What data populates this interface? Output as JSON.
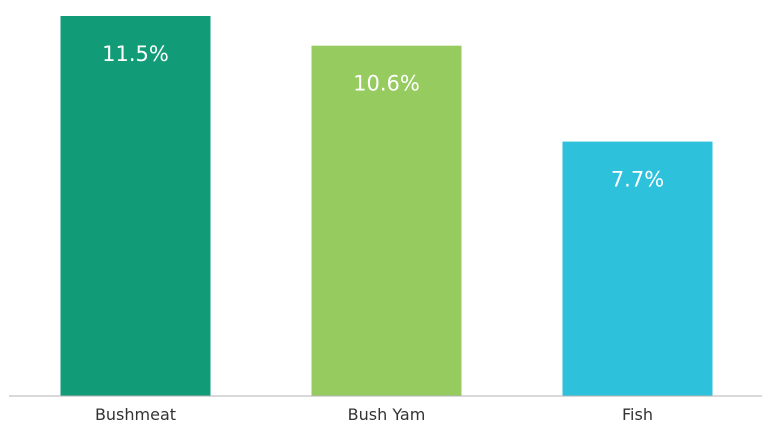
{
  "chart_data": {
    "type": "bar",
    "categories": [
      "Bushmeat",
      "Bush Yam",
      "Fish"
    ],
    "values": [
      11.5,
      10.6,
      7.7
    ],
    "value_labels": [
      "11.5%",
      "10.6%",
      "7.7%"
    ],
    "colors": [
      "#129b77",
      "#96cb5f",
      "#2ec1dc"
    ],
    "ylim": [
      0,
      11.5
    ],
    "grid": false,
    "legend": "none",
    "title": "",
    "xlabel": "",
    "ylabel": ""
  }
}
